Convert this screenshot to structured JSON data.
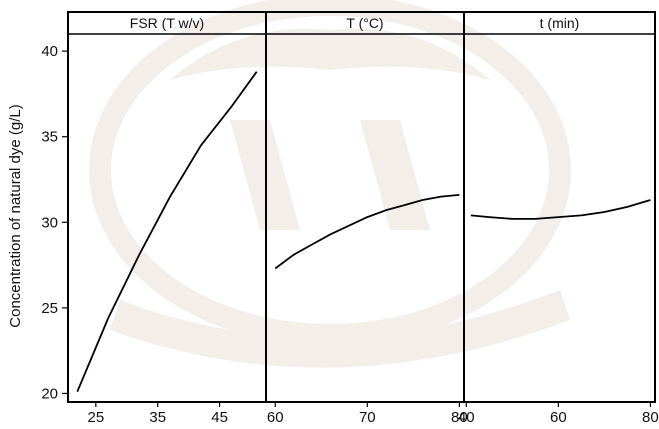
{
  "chart_data": {
    "type": "line",
    "ylabel": "Concentration of natural dye (g/L)",
    "ylim": [
      19.5,
      41
    ],
    "y_ticks": [
      20,
      25,
      30,
      35,
      40
    ],
    "panels": [
      {
        "title": "FSR (T w/v)",
        "xlim": [
          20.5,
          52.5
        ],
        "x_ticks": [
          25,
          35,
          45
        ],
        "x": [
          22,
          27,
          32,
          37,
          42,
          47,
          51
        ],
        "y": [
          20.1,
          24.4,
          28.1,
          31.5,
          34.5,
          36.8,
          38.8
        ]
      },
      {
        "title": "T (°C)",
        "xlim": [
          59,
          80.5
        ],
        "x_ticks": [
          60,
          70,
          80
        ],
        "x": [
          60,
          62,
          64,
          66,
          68,
          70,
          72,
          74,
          76,
          78,
          80
        ],
        "y": [
          27.3,
          28.1,
          28.7,
          29.3,
          29.8,
          30.3,
          30.7,
          31.0,
          31.3,
          31.5,
          31.6
        ]
      },
      {
        "title": "t (min)",
        "xlim": [
          39.5,
          81
        ],
        "x_ticks": [
          40,
          60,
          80
        ],
        "x": [
          41,
          45,
          50,
          55,
          60,
          65,
          70,
          75,
          80
        ],
        "y": [
          30.4,
          30.3,
          30.2,
          30.2,
          30.3,
          30.4,
          30.6,
          30.9,
          31.3
        ]
      }
    ],
    "grid": false,
    "legend": "none"
  },
  "colors": {
    "line": "#000000",
    "axis": "#000000",
    "watermark": "#d9c3b4"
  }
}
